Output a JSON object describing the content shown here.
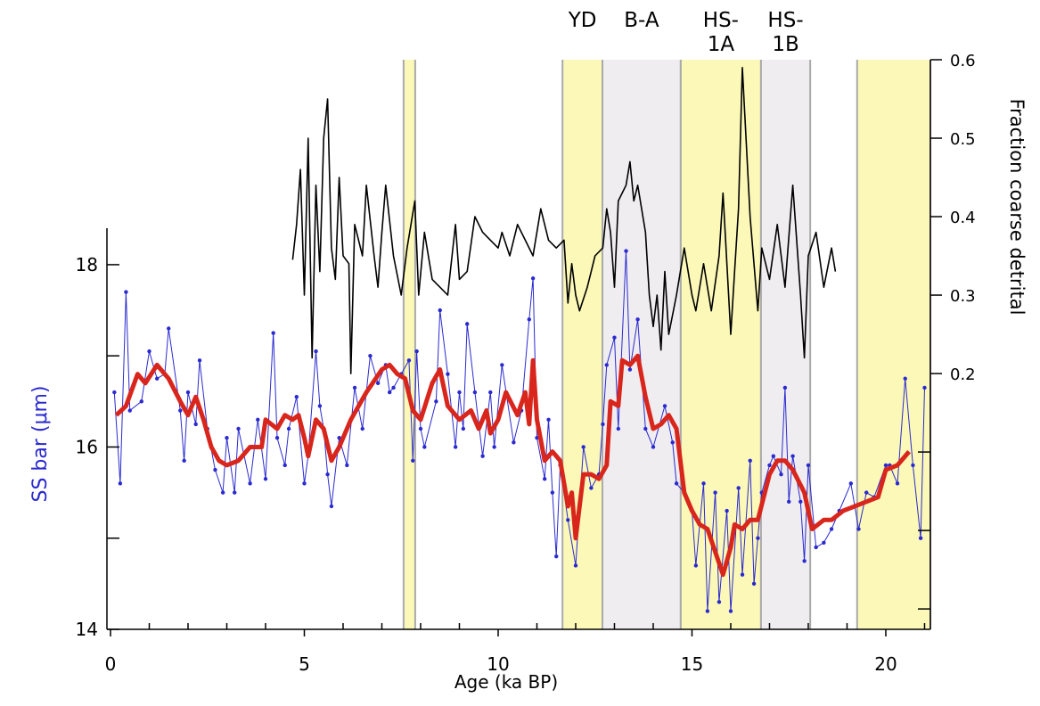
{
  "chart_data": {
    "type": "line",
    "x_label": "Age (ka BP)",
    "y_label": "SS  bar (μm)",
    "y2_label": "Fraction coarse detrital",
    "xlim": [
      0,
      21.15
    ],
    "xticks": [
      0,
      5,
      10,
      15,
      20
    ],
    "xminorticks": [
      1,
      2,
      3,
      4,
      6,
      7,
      8,
      9,
      11,
      12,
      13,
      14,
      16,
      17,
      18,
      19,
      21
    ],
    "ylim": [
      14,
      18.4
    ],
    "yticks": [
      14,
      16,
      18
    ],
    "yminorticks": [
      15,
      17
    ],
    "y2lim": [
      -0.126,
      0.6
    ],
    "y2ticks": [
      0.2,
      0.3,
      0.4,
      0.5,
      0.6
    ],
    "y2minorticks": [
      -0.1,
      0,
      0.1
    ],
    "bands": [
      {
        "range": [
          7.56,
          7.86
        ],
        "color": "#fbf8b8"
      },
      {
        "range": [
          11.66,
          12.69
        ],
        "color": "#fbf8b8",
        "label_lines": [
          "YD"
        ]
      },
      {
        "range": [
          12.69,
          14.71
        ],
        "color": "#efedf0",
        "label_lines": [
          "B-A"
        ]
      },
      {
        "range": [
          14.71,
          16.78
        ],
        "color": "#fbf8b8",
        "label_lines": [
          "HS-",
          "1A"
        ]
      },
      {
        "range": [
          16.78,
          18.05
        ],
        "color": "#efedf0",
        "label_lines": [
          "HS-",
          "1B"
        ]
      },
      {
        "range": [
          19.26,
          21.15
        ],
        "color": "#fbf8b8"
      }
    ],
    "series": [
      {
        "color": "#2a2ad0",
        "line_width": 1,
        "markers": true,
        "x": [
          0.1,
          0.25,
          0.4,
          0.5,
          0.8,
          1.0,
          1.2,
          1.4,
          1.5,
          1.8,
          1.9,
          2.0,
          2.2,
          2.3,
          2.5,
          2.7,
          2.9,
          3.0,
          3.2,
          3.3,
          3.6,
          3.8,
          4.0,
          4.2,
          4.3,
          4.5,
          4.6,
          4.8,
          5.0,
          5.1,
          5.3,
          5.4,
          5.5,
          5.6,
          5.7,
          5.9,
          6.1,
          6.3,
          6.5,
          6.7,
          6.9,
          7.1,
          7.2,
          7.3,
          7.5,
          7.7,
          7.8,
          7.9,
          8.0,
          8.1,
          8.4,
          8.5,
          8.7,
          8.9,
          9.0,
          9.1,
          9.2,
          9.4,
          9.6,
          9.8,
          9.9,
          10.1,
          10.4,
          10.6,
          10.8,
          10.9,
          11.0,
          11.2,
          11.3,
          11.4,
          11.5,
          11.6,
          11.8,
          12.0,
          12.2,
          12.4,
          12.6,
          12.7,
          12.8,
          13.0,
          13.1,
          13.3,
          13.4,
          13.6,
          13.8,
          14.0,
          14.3,
          14.5,
          14.6,
          14.8,
          15.0,
          15.1,
          15.3,
          15.4,
          15.6,
          15.7,
          15.9,
          16.0,
          16.2,
          16.3,
          16.5,
          16.6,
          16.7,
          16.8,
          17.0,
          17.1,
          17.3,
          17.4,
          17.5,
          17.6,
          17.8,
          17.9,
          18.0,
          18.2,
          18.4,
          18.6,
          18.8,
          19.1,
          19.3,
          19.5,
          19.7,
          20.0,
          20.1,
          20.3,
          20.5,
          20.7,
          20.9,
          21.0
        ],
        "values": [
          16.6,
          15.6,
          17.7,
          16.4,
          16.5,
          17.05,
          16.75,
          16.8,
          17.3,
          16.4,
          15.85,
          16.6,
          16.25,
          16.95,
          16.2,
          15.75,
          15.5,
          16.1,
          15.5,
          16.2,
          15.6,
          16.3,
          15.65,
          17.25,
          16.1,
          15.8,
          16.2,
          16.55,
          15.6,
          15.9,
          17.05,
          16.45,
          16.2,
          15.7,
          15.35,
          16.1,
          15.8,
          16.65,
          16.2,
          17.0,
          16.7,
          16.9,
          16.6,
          16.65,
          16.8,
          16.95,
          15.85,
          17.05,
          16.2,
          16.0,
          16.5,
          17.5,
          16.8,
          16.0,
          16.6,
          16.2,
          17.35,
          16.6,
          15.9,
          16.6,
          16.0,
          16.9,
          16.05,
          16.4,
          17.4,
          17.85,
          16.1,
          15.65,
          16.3,
          15.5,
          14.8,
          15.8,
          15.2,
          14.7,
          16.0,
          15.55,
          15.7,
          16.25,
          16.9,
          17.2,
          16.2,
          18.15,
          16.85,
          17.4,
          16.2,
          16.0,
          16.45,
          16.05,
          15.6,
          15.5,
          15.3,
          14.7,
          15.6,
          14.2,
          15.5,
          14.3,
          15.3,
          14.2,
          15.55,
          14.6,
          15.85,
          14.5,
          15.0,
          15.5,
          15.8,
          15.9,
          15.7,
          16.65,
          15.4,
          15.9,
          15.4,
          14.75,
          15.8,
          14.9,
          14.95,
          15.1,
          15.3,
          15.6,
          15.1,
          15.5,
          15.45,
          15.8,
          15.8,
          15.6,
          16.75,
          15.8,
          15.0,
          16.65
        ]
      },
      {
        "color": "#d9261c",
        "line_width": 5,
        "markers": false,
        "x": [
          0.15,
          0.4,
          0.7,
          0.9,
          1.2,
          1.5,
          1.8,
          2.0,
          2.2,
          2.4,
          2.6,
          2.8,
          3.0,
          3.3,
          3.6,
          3.9,
          4.0,
          4.3,
          4.5,
          4.7,
          4.85,
          5.0,
          5.1,
          5.3,
          5.5,
          5.7,
          5.9,
          6.2,
          6.6,
          7.0,
          7.2,
          7.4,
          7.6,
          7.8,
          8.0,
          8.3,
          8.5,
          8.7,
          9.0,
          9.3,
          9.5,
          9.7,
          9.8,
          10.0,
          10.2,
          10.5,
          10.7,
          10.8,
          10.9,
          11.0,
          11.2,
          11.4,
          11.6,
          11.8,
          11.9,
          12.0,
          12.2,
          12.4,
          12.6,
          12.8,
          12.9,
          13.1,
          13.2,
          13.4,
          13.6,
          13.8,
          14.0,
          14.2,
          14.4,
          14.6,
          14.8,
          15.0,
          15.2,
          15.4,
          15.6,
          15.8,
          16.0,
          16.1,
          16.3,
          16.5,
          16.7,
          17.0,
          17.2,
          17.4,
          17.6,
          17.9,
          18.1,
          18.4,
          18.6,
          18.9,
          19.2,
          19.5,
          19.8,
          20.0,
          20.3,
          20.6
        ],
        "values": [
          16.35,
          16.45,
          16.8,
          16.7,
          16.9,
          16.75,
          16.5,
          16.35,
          16.55,
          16.3,
          16.0,
          15.85,
          15.8,
          15.85,
          16.0,
          16.0,
          16.3,
          16.2,
          16.35,
          16.3,
          16.35,
          16.1,
          15.9,
          16.3,
          16.2,
          15.85,
          16.0,
          16.3,
          16.6,
          16.85,
          16.9,
          16.8,
          16.75,
          16.4,
          16.3,
          16.7,
          16.85,
          16.45,
          16.3,
          16.4,
          16.2,
          16.4,
          16.15,
          16.3,
          16.6,
          16.35,
          16.6,
          16.25,
          16.95,
          16.3,
          15.85,
          15.95,
          15.85,
          15.35,
          15.5,
          15.0,
          15.7,
          15.7,
          15.65,
          15.8,
          16.5,
          16.45,
          16.95,
          16.9,
          17.0,
          16.55,
          16.2,
          16.25,
          16.35,
          16.2,
          15.5,
          15.3,
          15.15,
          15.1,
          14.85,
          14.6,
          14.9,
          15.15,
          15.1,
          15.2,
          15.2,
          15.7,
          15.85,
          15.85,
          15.75,
          15.5,
          15.1,
          15.2,
          15.2,
          15.3,
          15.35,
          15.4,
          15.45,
          15.75,
          15.8,
          15.95
        ]
      },
      {
        "color": "#000000",
        "line_width": 1.6,
        "markers": false,
        "axis": "y2",
        "x": [
          4.7,
          4.8,
          4.9,
          5.0,
          5.1,
          5.2,
          5.3,
          5.4,
          5.5,
          5.6,
          5.7,
          5.8,
          5.9,
          6.0,
          6.15,
          6.2,
          6.3,
          6.5,
          6.6,
          6.8,
          6.9,
          7.0,
          7.1,
          7.3,
          7.5,
          7.65,
          7.85,
          7.95,
          8.1,
          8.3,
          8.5,
          8.7,
          8.9,
          9.0,
          9.2,
          9.4,
          9.6,
          9.8,
          10.0,
          10.1,
          10.3,
          10.5,
          10.7,
          10.9,
          11.1,
          11.3,
          11.5,
          11.7,
          11.8,
          11.9,
          12.0,
          12.1,
          12.3,
          12.4,
          12.5,
          12.7,
          12.8,
          12.9,
          13.0,
          13.1,
          13.3,
          13.4,
          13.5,
          13.6,
          13.8,
          13.9,
          14.0,
          14.1,
          14.2,
          14.3,
          14.4,
          14.6,
          14.8,
          15.0,
          15.1,
          15.3,
          15.5,
          15.7,
          15.8,
          16.0,
          16.1,
          16.2,
          16.3,
          16.5,
          16.7,
          16.8,
          17.0,
          17.2,
          17.4,
          17.6,
          17.8,
          17.9,
          18.0,
          18.2,
          18.4,
          18.6,
          18.7
        ],
        "values": [
          0.345,
          0.39,
          0.46,
          0.3,
          0.5,
          0.22,
          0.44,
          0.33,
          0.5,
          0.55,
          0.36,
          0.32,
          0.45,
          0.35,
          0.34,
          0.2,
          0.39,
          0.35,
          0.44,
          0.35,
          0.31,
          0.38,
          0.44,
          0.35,
          0.3,
          0.36,
          0.42,
          0.3,
          0.38,
          0.32,
          0.31,
          0.3,
          0.39,
          0.32,
          0.33,
          0.4,
          0.38,
          0.37,
          0.36,
          0.38,
          0.35,
          0.39,
          0.37,
          0.35,
          0.41,
          0.37,
          0.36,
          0.37,
          0.29,
          0.34,
          0.3,
          0.28,
          0.31,
          0.33,
          0.35,
          0.36,
          0.41,
          0.38,
          0.31,
          0.42,
          0.44,
          0.47,
          0.42,
          0.44,
          0.38,
          0.3,
          0.26,
          0.3,
          0.23,
          0.33,
          0.25,
          0.3,
          0.36,
          0.3,
          0.28,
          0.34,
          0.28,
          0.35,
          0.43,
          0.25,
          0.33,
          0.41,
          0.59,
          0.4,
          0.28,
          0.36,
          0.32,
          0.39,
          0.31,
          0.44,
          0.3,
          0.22,
          0.35,
          0.38,
          0.31,
          0.36,
          0.33
        ]
      }
    ]
  }
}
